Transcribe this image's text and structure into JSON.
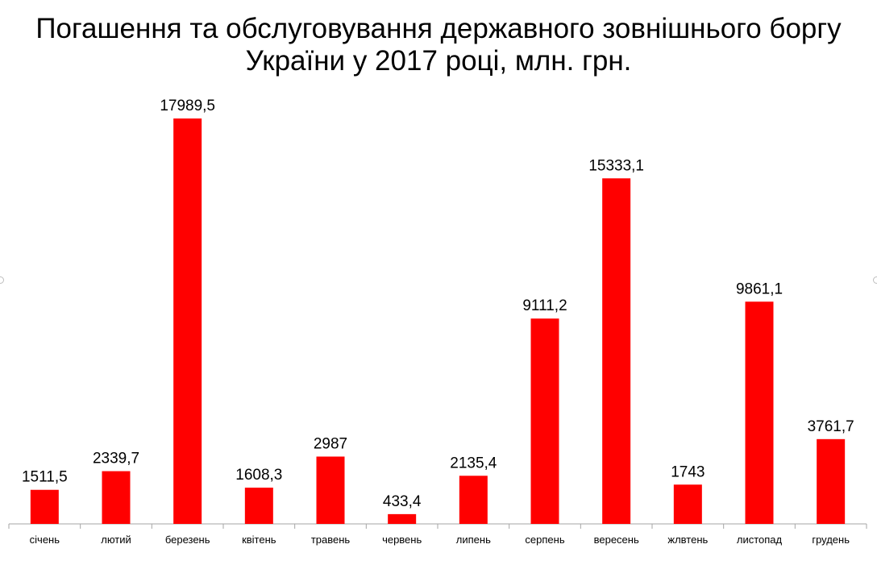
{
  "chart_data": {
    "type": "bar",
    "title_line1": "Погашення та обслуговування державного зовнішнього боргу",
    "title_line2": "України у 2017 році, млн. грн.",
    "categories": [
      "січень",
      "лютий",
      "березень",
      "квітень",
      "травень",
      "червень",
      "липень",
      "серпень",
      "вересень",
      "жлвтень",
      "листопад",
      "грудень"
    ],
    "values": [
      1511.5,
      2339.7,
      17989.5,
      1608.3,
      2987,
      433.4,
      2135.4,
      9111.2,
      15333.1,
      1743,
      9861.1,
      3761.7
    ],
    "value_labels": [
      "1511,5",
      "2339,7",
      "17989,5",
      "1608,3",
      "2987",
      "433,4",
      "2135,4",
      "9111,2",
      "15333,1",
      "1743",
      "9861,1",
      "3761,7"
    ],
    "ylim": [
      0,
      17989.5
    ],
    "grid": false,
    "bar_color": "#ff0000",
    "axis_color": "#a6a6a6"
  }
}
